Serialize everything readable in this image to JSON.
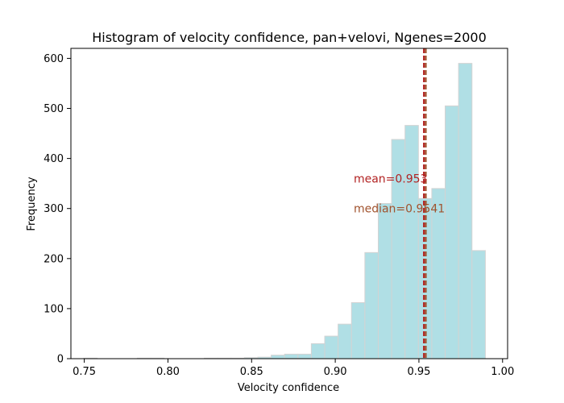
{
  "chart_data": {
    "type": "bar",
    "title": "Histogram of velocity confidence, pan+velovi, Ngenes=2000",
    "xlabel": "Velocity confidence",
    "ylabel": "Frequency",
    "xlim": [
      0.742,
      1.003
    ],
    "ylim": [
      0,
      620
    ],
    "x_ticks": [
      0.75,
      0.8,
      0.85,
      0.9,
      0.95,
      1.0
    ],
    "x_tick_labels": [
      "0.75",
      "0.80",
      "0.85",
      "0.90",
      "0.95",
      "1.00"
    ],
    "y_ticks": [
      0,
      100,
      200,
      300,
      400,
      500,
      600
    ],
    "y_tick_labels": [
      "0",
      "100",
      "200",
      "300",
      "400",
      "500",
      "600"
    ],
    "bin_edges": [
      0.7497,
      0.7577,
      0.7657,
      0.7737,
      0.7817,
      0.7897,
      0.7977,
      0.8057,
      0.8137,
      0.8217,
      0.8297,
      0.8377,
      0.8457,
      0.8537,
      0.8617,
      0.8697,
      0.8777,
      0.8857,
      0.8937,
      0.9017,
      0.9097,
      0.9177,
      0.9257,
      0.9337,
      0.9417,
      0.9497,
      0.9577,
      0.9657,
      0.9737,
      0.9817,
      0.9897
    ],
    "counts": [
      1,
      0,
      0,
      0,
      1,
      1,
      0,
      0,
      0,
      1,
      1,
      1,
      2,
      3,
      7,
      9,
      9,
      30,
      45,
      69,
      112,
      212,
      310,
      438,
      466,
      320,
      340,
      505,
      590,
      216
    ],
    "bar_color": "#b0dfe5",
    "bar_edge_color": "#d3d3d3",
    "lines": [
      {
        "label": "mean=0.953",
        "x": 0.953,
        "color": "#b22222",
        "text_color": "#b22222"
      },
      {
        "label": "median=0.9541",
        "x": 0.9541,
        "color": "#a0522d",
        "text_color": "#a0522d"
      }
    ],
    "annotation_positions": {
      "mean_y": 360,
      "median_y": 300,
      "text_x": 0.911
    },
    "grid": false,
    "legend": "none"
  }
}
